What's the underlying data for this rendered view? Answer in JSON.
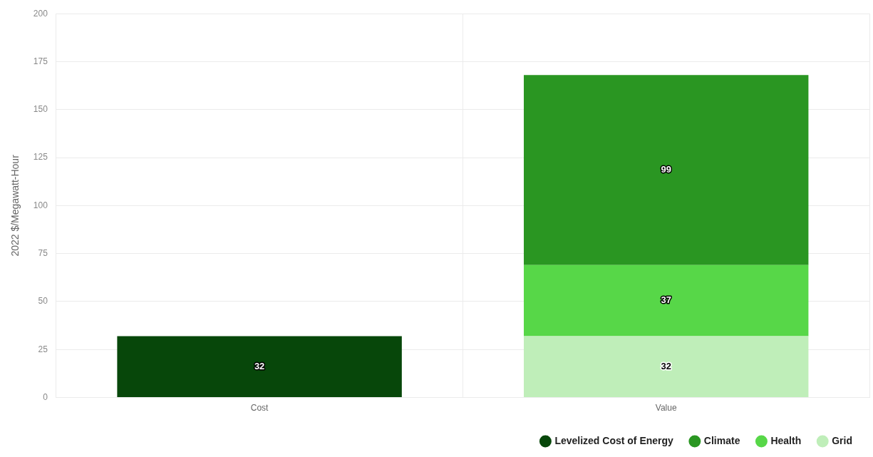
{
  "chart_data": {
    "type": "bar",
    "stacked": true,
    "ylabel": "2022 $/Megawatt-Hour",
    "categories": [
      "Cost",
      "Value"
    ],
    "series": [
      {
        "name": "Levelized Cost of Energy",
        "color": "#07470a",
        "values": [
          32,
          null
        ]
      },
      {
        "name": "Grid",
        "color": "#bfeeb9",
        "values": [
          null,
          32
        ]
      },
      {
        "name": "Health",
        "color": "#57d748",
        "values": [
          null,
          37
        ]
      },
      {
        "name": "Climate",
        "color": "#2a9622",
        "values": [
          null,
          99
        ]
      }
    ],
    "ylim": [
      0,
      200
    ],
    "yticks": [
      0,
      25,
      50,
      75,
      100,
      125,
      150,
      175,
      200
    ],
    "grid": true,
    "legend": "bottom right",
    "data_labels": true
  }
}
